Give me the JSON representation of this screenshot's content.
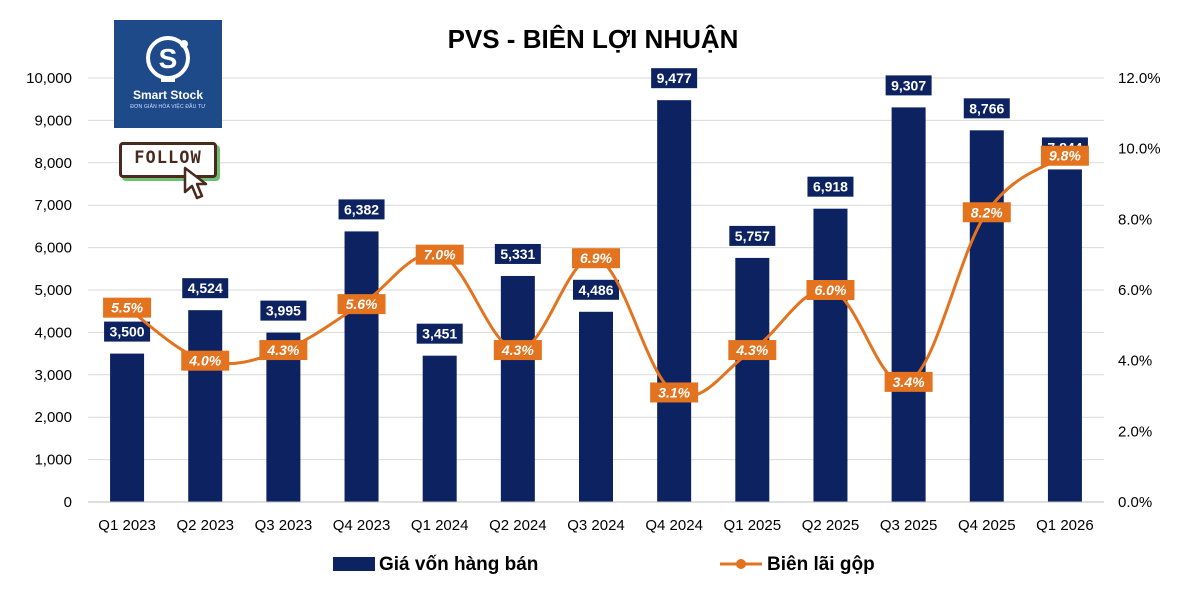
{
  "logo": {
    "name": "Smart Stock",
    "tagline": "ĐƠN GIẢN HÓA VIỆC ĐẦU TƯ",
    "follow_label": "FOLLOW",
    "brand_color": "#1f4a8a"
  },
  "chart_data": {
    "type": "bar",
    "title": "PVS - BIÊN LỢI NHUẬN",
    "categories": [
      "Q1 2023",
      "Q2 2023",
      "Q3 2023",
      "Q4 2023",
      "Q1 2024",
      "Q2 2024",
      "Q3 2024",
      "Q4 2024",
      "Q1 2025",
      "Q2 2025",
      "Q3 2025",
      "Q4 2025",
      "Q1 2026"
    ],
    "series": [
      {
        "name": "Giá vốn hàng bán",
        "type": "bar",
        "axis": "left",
        "color": "#0d2260",
        "values": [
          3500,
          4524,
          3995,
          6382,
          3451,
          5331,
          4486,
          9477,
          5757,
          6918,
          9307,
          8766,
          7844
        ],
        "labels": [
          "3,500",
          "4,524",
          "3,995",
          "6,382",
          "3,451",
          "5,331",
          "4,486",
          "9,477",
          "5,757",
          "6,918",
          "9,307",
          "8,766",
          "7,844"
        ]
      },
      {
        "name": "Biên lãi gộp",
        "type": "line",
        "axis": "right",
        "color": "#e3731f",
        "values": [
          5.5,
          4.0,
          4.3,
          5.6,
          7.0,
          4.3,
          6.9,
          3.1,
          4.3,
          6.0,
          3.4,
          8.2,
          9.8
        ],
        "labels": [
          "5.5%",
          "4.0%",
          "4.3%",
          "5.6%",
          "7.0%",
          "4.3%",
          "6.9%",
          "3.1%",
          "4.3%",
          "6.0%",
          "3.4%",
          "8.2%",
          "9.8%"
        ]
      }
    ],
    "y_left": {
      "range": [
        0,
        10000
      ],
      "ticks": [
        "0",
        "1,000",
        "2,000",
        "3,000",
        "4,000",
        "5,000",
        "6,000",
        "7,000",
        "8,000",
        "9,000",
        "10,000"
      ]
    },
    "y_right": {
      "range": [
        0,
        12
      ],
      "ticks": [
        "0.0%",
        "2.0%",
        "4.0%",
        "6.0%",
        "8.0%",
        "10.0%",
        "12.0%"
      ]
    },
    "grid": true,
    "legend_position": "bottom"
  }
}
